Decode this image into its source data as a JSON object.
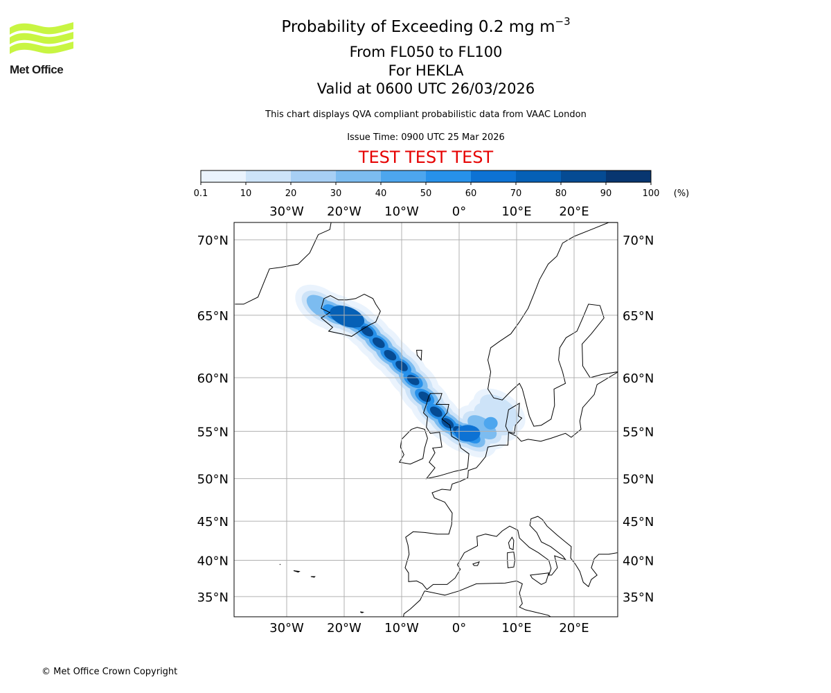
{
  "header": {
    "title_main": "Probability of Exceeding 0.2 mg m",
    "title_superscript": "−3",
    "level_range": "From FL050 to FL100",
    "volcano": "For HEKLA",
    "valid_time": "Valid at 0600 UTC 26/03/2026",
    "disclaimer": "This chart displays QVA compliant probabilistic data from VAAC London",
    "issue_time": "Issue Time: 0900 UTC 25 Mar 2026",
    "test_banner": "TEST TEST TEST",
    "test_color": "#e60000"
  },
  "logo": {
    "text": "Met Office",
    "icon": "met-office-wave-icon",
    "color": "#c8f542"
  },
  "colorbar": {
    "unit_label": "(%)",
    "ticks": [
      "0.1",
      "10",
      "20",
      "30",
      "40",
      "50",
      "60",
      "70",
      "80",
      "90",
      "100"
    ],
    "colors": [
      "#eaf3fd",
      "#cde3f8",
      "#a7cff4",
      "#7cbcf0",
      "#4da6ee",
      "#2791ea",
      "#0d72d4",
      "#0560b6",
      "#054b93",
      "#083670"
    ]
  },
  "map": {
    "lon_labels": [
      "30°W",
      "20°W",
      "10°W",
      "0°",
      "10°E",
      "20°E"
    ],
    "lat_labels": [
      "70°N",
      "65°N",
      "60°N",
      "55°N",
      "50°N",
      "45°N",
      "40°N",
      "35°N"
    ],
    "gridline_color": "#b0b0b0"
  },
  "footer": {
    "copyright": "© Met Office Crown Copyright"
  }
}
